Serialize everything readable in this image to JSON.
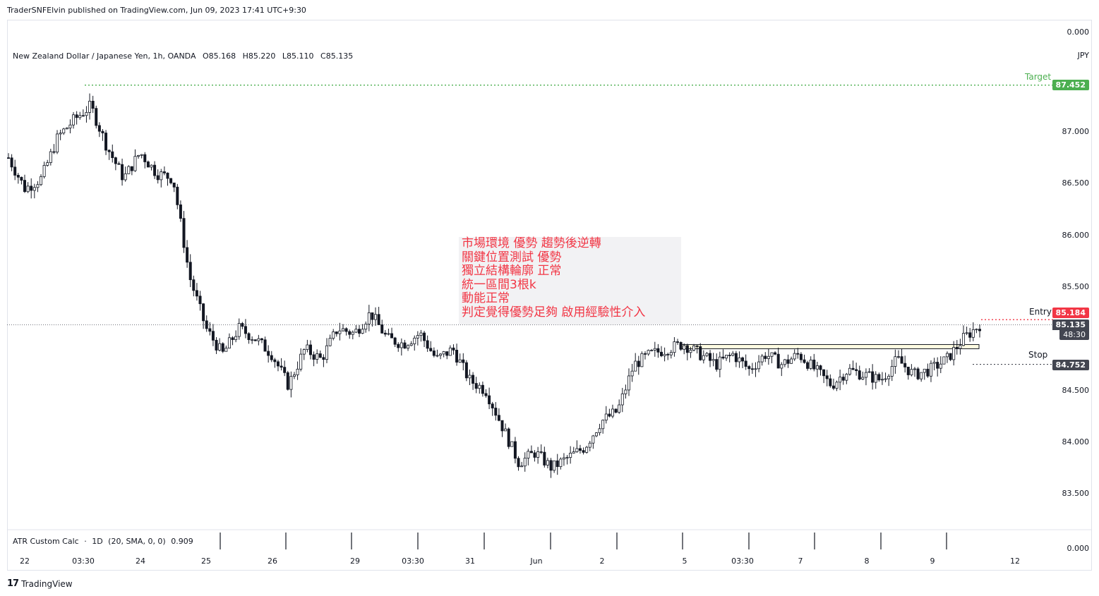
{
  "header": {
    "publisher_line": "TraderSNFElvin published on TradingView.com, Jun 09, 2023 17:41 UTC+9:30"
  },
  "legend": {
    "symbol": "New Zealand Dollar / Japanese Yen, 1h, OANDA",
    "open": "O85.168",
    "high": "H85.220",
    "low": "L85.110",
    "close": "C85.135"
  },
  "indicator": {
    "name": "ATR Custom Calc",
    "dot": "·",
    "interval": "1D",
    "params": "(20, SMA, 0, 0)",
    "value": "0.909",
    "axis_top": "0.000",
    "axis_bottom": "0.000"
  },
  "axis": {
    "currency": "JPY",
    "price_ticks": [
      "87.000",
      "86.500",
      "86.000",
      "85.500",
      "84.500",
      "84.000",
      "83.500"
    ],
    "time_ticks": [
      "22",
      "03:30",
      "24",
      "25",
      "26",
      "29",
      "03:30",
      "31",
      "Jun",
      "2",
      "5",
      "03:30",
      "7",
      "8",
      "9",
      "12"
    ]
  },
  "levels": {
    "target": {
      "label": "Target",
      "price": "87.452",
      "color": "#4caf50"
    },
    "entry": {
      "label": "Entry",
      "price": "85.184",
      "color": "#f23645"
    },
    "stop": {
      "label": "Stop",
      "price": "84.752",
      "color": "#131722"
    },
    "current": {
      "price": "85.135",
      "countdown": "48:30"
    }
  },
  "annotation": {
    "lines": [
      "市場環境 優勢  趨勢後逆轉",
      "關鍵位置測試 優勢",
      "獨立結構輪廓 正常",
      "統一區間3根k",
      "動能正常",
      "判定覺得優勢足夠 啟用經驗性介入"
    ],
    "color": "#f23645"
  },
  "footer": {
    "logo_text": "TradingView",
    "icon": "tradingview-logo-icon"
  },
  "chart_data": {
    "type": "candlestick",
    "instrument": "NZDJPY",
    "timeframe": "1h",
    "ylim": [
      83.4,
      87.6
    ],
    "series": [
      {
        "x": "May 22 00:00",
        "close": 86.75
      },
      {
        "x": "May 22 06:00",
        "close": 86.45
      },
      {
        "x": "May 22 12:00",
        "close": 86.55
      },
      {
        "x": "May 23 00:00",
        "close": 86.95
      },
      {
        "x": "May 23 06:00",
        "close": 87.12
      },
      {
        "x": "May 23 12:00",
        "close": 87.25
      },
      {
        "x": "May 23 18:00",
        "close": 86.85
      },
      {
        "x": "May 24 00:00",
        "close": 86.55
      },
      {
        "x": "May 24 06:00",
        "close": 86.8
      },
      {
        "x": "May 24 12:00",
        "close": 86.6
      },
      {
        "x": "May 24 18:00",
        "close": 86.55
      },
      {
        "x": "May 24 21:00",
        "close": 85.6
      },
      {
        "x": "May 25 00:00",
        "close": 85.1
      },
      {
        "x": "May 25 06:00",
        "close": 84.85
      },
      {
        "x": "May 25 12:00",
        "close": 85.1
      },
      {
        "x": "May 25 18:00",
        "close": 85.0
      },
      {
        "x": "May 26 00:00",
        "close": 84.85
      },
      {
        "x": "May 26 06:00",
        "close": 84.55
      },
      {
        "x": "May 26 12:00",
        "close": 84.9
      },
      {
        "x": "May 26 18:00",
        "close": 84.8
      },
      {
        "x": "May 29 00:00",
        "close": 85.1
      },
      {
        "x": "May 29 06:00",
        "close": 85.05
      },
      {
        "x": "May 29 12:00",
        "close": 85.25
      },
      {
        "x": "May 29 18:00",
        "close": 85.0
      },
      {
        "x": "May 30 00:00",
        "close": 84.95
      },
      {
        "x": "May 30 06:00",
        "close": 85.05
      },
      {
        "x": "May 30 12:00",
        "close": 84.8
      },
      {
        "x": "May 30 18:00",
        "close": 84.9
      },
      {
        "x": "May 31 00:00",
        "close": 84.6
      },
      {
        "x": "May 31 06:00",
        "close": 84.5
      },
      {
        "x": "May 31 12:00",
        "close": 84.15
      },
      {
        "x": "May 31 18:00",
        "close": 83.8
      },
      {
        "x": "Jun 01 00:00",
        "close": 83.9
      },
      {
        "x": "Jun 01 06:00",
        "close": 83.75
      },
      {
        "x": "Jun 01 12:00",
        "close": 83.85
      },
      {
        "x": "Jun 01 18:00",
        "close": 83.95
      },
      {
        "x": "Jun 02 00:00",
        "close": 84.2
      },
      {
        "x": "Jun 02 06:00",
        "close": 84.3
      },
      {
        "x": "Jun 02 12:00",
        "close": 84.75
      },
      {
        "x": "Jun 02 18:00",
        "close": 84.85
      },
      {
        "x": "Jun 05 00:00",
        "close": 84.9
      },
      {
        "x": "Jun 05 06:00",
        "close": 84.95
      },
      {
        "x": "Jun 05 12:00",
        "close": 84.85
      },
      {
        "x": "Jun 05 18:00",
        "close": 84.75
      },
      {
        "x": "Jun 06 00:00",
        "close": 84.85
      },
      {
        "x": "Jun 06 06:00",
        "close": 84.7
      },
      {
        "x": "Jun 06 12:00",
        "close": 84.85
      },
      {
        "x": "Jun 06 18:00",
        "close": 84.75
      },
      {
        "x": "Jun 07 00:00",
        "close": 84.85
      },
      {
        "x": "Jun 07 06:00",
        "close": 84.7
      },
      {
        "x": "Jun 07 12:00",
        "close": 84.55
      },
      {
        "x": "Jun 07 18:00",
        "close": 84.7
      },
      {
        "x": "Jun 08 00:00",
        "close": 84.65
      },
      {
        "x": "Jun 08 06:00",
        "close": 84.6
      },
      {
        "x": "Jun 08 12:00",
        "close": 84.8
      },
      {
        "x": "Jun 08 18:00",
        "close": 84.65
      },
      {
        "x": "Jun 09 00:00",
        "close": 84.7
      },
      {
        "x": "Jun 09 06:00",
        "close": 84.8
      },
      {
        "x": "Jun 09 09:00",
        "close": 85.0
      },
      {
        "x": "Jun 09 11:00",
        "close": 85.135
      }
    ],
    "zones": [
      {
        "name": "range",
        "from": 84.87,
        "to": 84.93,
        "x_start": "Jun 05 00:00",
        "x_end": "Jun 09 09:00"
      }
    ]
  }
}
